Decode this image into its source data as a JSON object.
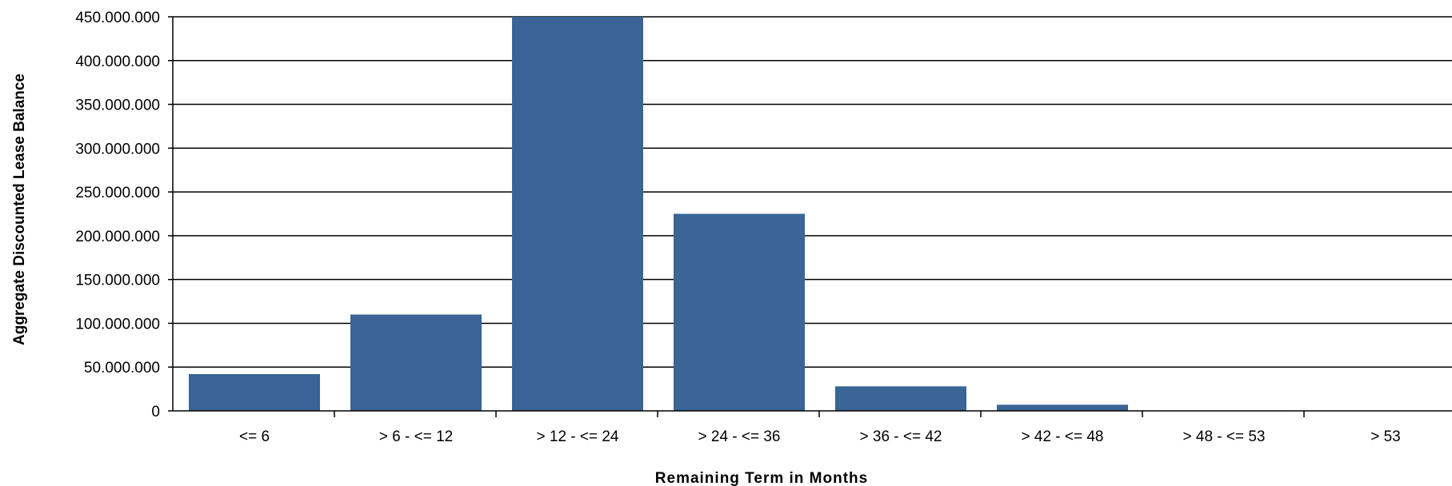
{
  "chart_data": {
    "type": "bar",
    "title": "",
    "xlabel": "Remaining Term in Months",
    "ylabel": "Aggregate Discounted Lease Balance",
    "categories": [
      "<= 6",
      "> 6 - <= 12",
      "> 12 - <= 24",
      "> 24 - <= 36",
      "> 36 - <= 42",
      "> 42 - <= 48",
      "> 48 - <= 53",
      "> 53"
    ],
    "values": [
      42000000,
      110000000,
      450000000,
      225000000,
      28000000,
      7000000,
      500000,
      300000
    ],
    "ylim": [
      0,
      450000000
    ],
    "yticks": [
      0,
      50000000,
      100000000,
      150000000,
      200000000,
      250000000,
      300000000,
      350000000,
      400000000,
      450000000
    ],
    "ytick_labels": [
      "0",
      "50.000.000",
      "100.000.000",
      "150.000.000",
      "200.000.000",
      "250.000.000",
      "300.000.000",
      "350.000.000",
      "400.000.000",
      "450.000.000"
    ],
    "grid": true,
    "bar_color": "#3a6596",
    "grid_color": "#000000"
  }
}
